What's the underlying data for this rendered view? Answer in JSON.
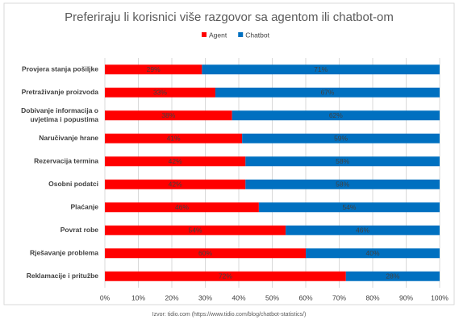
{
  "chart_data": {
    "type": "stacked-bar-horizontal",
    "title": "Preferiraju li korisnici više razgovor sa agentom ili chatbot-om",
    "categories": [
      "Provjera stanja pošiljke",
      "Pretraživanje proizvoda",
      "Dobivanje informacija o uvjetima i popustima",
      "Naručivanje hrane",
      "Rezervacija termina",
      "Osobni podatci",
      "Plaćanje",
      "Povrat robe",
      "Rješavanje problema",
      "Reklamacije i pritužbe"
    ],
    "series": [
      {
        "name": "Agent",
        "color": "#ff0000",
        "values": [
          29,
          33,
          38,
          41,
          42,
          42,
          46,
          54,
          60,
          72
        ],
        "value_labels": [
          "29%",
          "33%",
          "38%",
          "41%",
          "42%",
          "42%",
          "46%",
          "54%",
          "60%",
          "72%"
        ]
      },
      {
        "name": "Chatbot",
        "color": "#0070c0",
        "values": [
          71,
          67,
          62,
          59,
          58,
          58,
          54,
          46,
          40,
          28
        ],
        "value_labels": [
          "71%",
          "67%",
          "62%",
          "59%",
          "58%",
          "58%",
          "54%",
          "46%",
          "40%",
          "28%"
        ]
      }
    ],
    "xlim": [
      0,
      100
    ],
    "xticks": [
      {
        "value": 0,
        "label": "0%"
      },
      {
        "value": 10,
        "label": "10%"
      },
      {
        "value": 20,
        "label": "20%"
      },
      {
        "value": 30,
        "label": "30%"
      },
      {
        "value": 40,
        "label": "40%"
      },
      {
        "value": 50,
        "label": "50%"
      },
      {
        "value": 60,
        "label": "60%"
      },
      {
        "value": 70,
        "label": "70%"
      },
      {
        "value": 80,
        "label": "80%"
      },
      {
        "value": 90,
        "label": "90%"
      },
      {
        "value": 100,
        "label": "100%"
      }
    ],
    "grid": true,
    "legend": "top",
    "source": "Izvor: tidio.com (https://www.tidio.com/blog/chatbot-statistics/)"
  }
}
